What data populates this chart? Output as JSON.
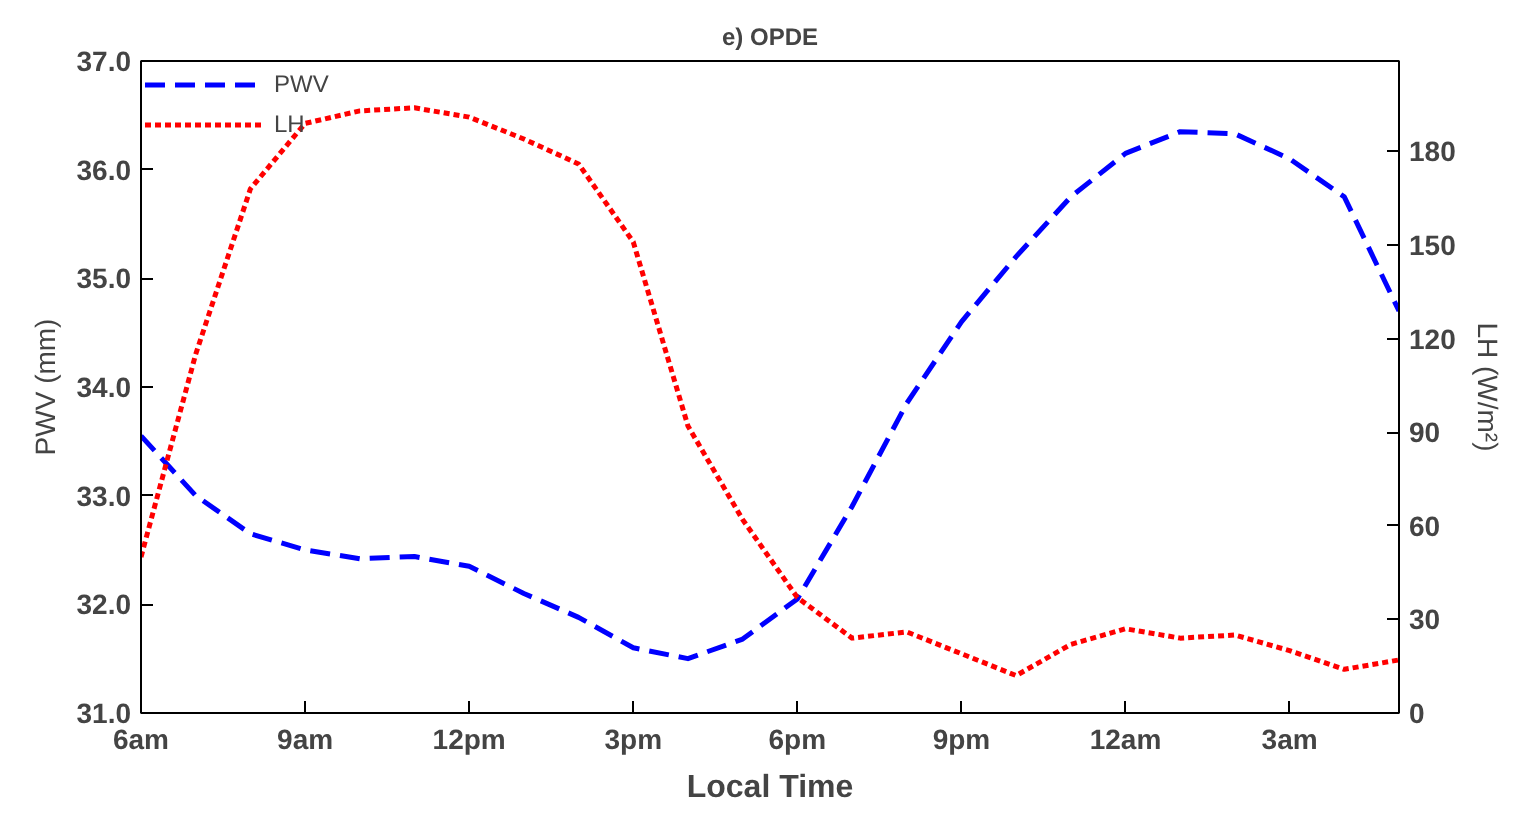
{
  "chart_data": {
    "type": "line",
    "title": "e) OPDE",
    "xlabel": "Local Time",
    "ylabel": "PWV (mm)",
    "y2label": "LH (W/m²)",
    "categories": [
      "6am",
      null,
      null,
      "9am",
      null,
      null,
      "12pm",
      null,
      null,
      "3pm",
      null,
      null,
      "6pm",
      null,
      null,
      "9pm",
      null,
      null,
      "12am",
      null,
      null,
      "3am",
      null,
      null
    ],
    "ylim": [
      31,
      37
    ],
    "yticks": [
      {
        "value": 31,
        "label": "31.0"
      },
      {
        "value": 32,
        "label": "32.0"
      },
      {
        "value": 33,
        "label": "33.0"
      },
      {
        "value": 34,
        "label": "34.0"
      },
      {
        "value": 35,
        "label": "35.0"
      },
      {
        "value": 36,
        "label": "36.0"
      },
      {
        "value": 37,
        "label": "37.0"
      }
    ],
    "y2lim": [
      0,
      209
    ],
    "y2ticks": [
      0,
      30,
      60,
      90,
      120,
      150,
      180
    ],
    "series": [
      {
        "name": "PWV",
        "color": "#0000ff",
        "line_style": "dashed",
        "values": [
          33.55,
          33.0,
          32.65,
          32.5,
          32.42,
          32.44,
          32.35,
          32.1,
          31.88,
          31.6,
          31.5,
          31.68,
          32.05,
          32.9,
          33.85,
          34.6,
          35.2,
          35.75,
          36.15,
          36.35,
          36.33,
          36.1,
          35.75,
          34.7
        ]
      },
      {
        "name": "LH",
        "color": "#ff0000",
        "line_style": "dotted",
        "axis": "y2",
        "values": [
          50,
          115,
          168,
          189,
          193,
          194,
          191,
          184,
          176,
          151,
          92,
          62,
          37,
          24,
          26,
          19,
          12,
          22,
          27,
          24,
          25,
          20,
          14,
          17
        ]
      }
    ],
    "grid": false,
    "legend": "top left"
  }
}
